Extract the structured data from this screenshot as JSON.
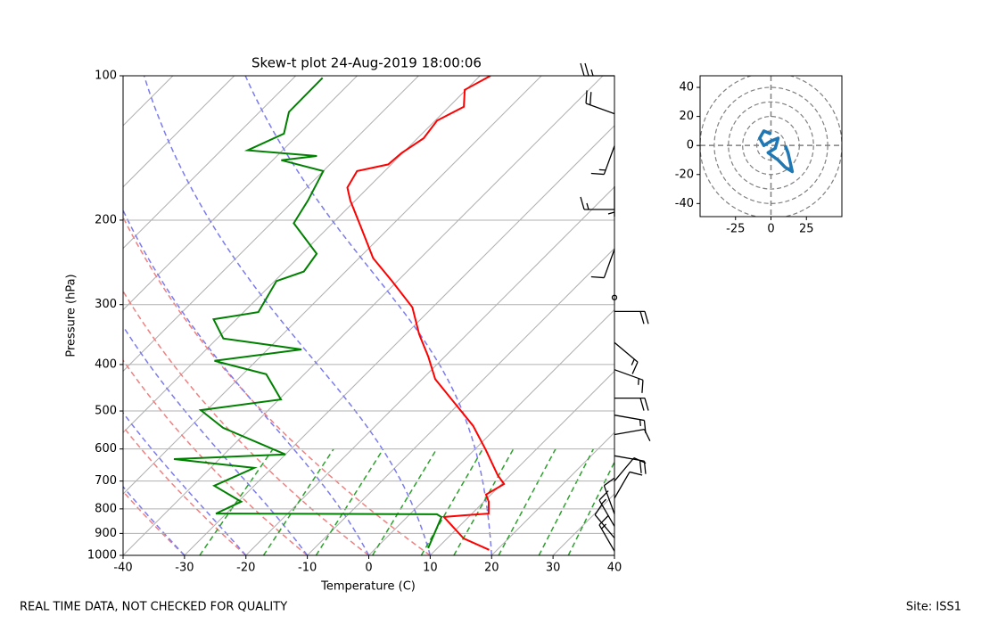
{
  "chart_data": [
    {
      "type": "skewt",
      "title": "Skew-t plot 24-Aug-2019 18:00:06",
      "x_label": "Temperature (C)",
      "y_label": "Pressure (hPa)",
      "xlim": [
        -40,
        40
      ],
      "xticks": [
        -40,
        -30,
        -20,
        -10,
        0,
        10,
        20,
        30,
        40
      ],
      "ylim": [
        1000,
        100
      ],
      "yticks": [
        1000,
        900,
        800,
        700,
        600,
        500,
        400,
        300,
        200,
        100
      ],
      "log_y": true,
      "grid": true,
      "series": [
        {
          "color": "#ff0000",
          "pressure": [
            974,
            922,
            832,
            825,
            818,
            773,
            747,
            710,
            680,
            603,
            537,
            487,
            429,
            385,
            346,
            304,
            268,
            240,
            207,
            182,
            171,
            158,
            153,
            145,
            135,
            124,
            116,
            107,
            100
          ],
          "values": [
            18.7,
            12.7,
            6.0,
            8.9,
            12.7,
            10.8,
            9.2,
            10.4,
            7.9,
            1.9,
            -4.1,
            -10.1,
            -17.9,
            -22.7,
            -27.8,
            -33.3,
            -40.9,
            -47.7,
            -54.7,
            -60.8,
            -63.4,
            -64.5,
            -60.5,
            -60.2,
            -59.0,
            -59.7,
            -57.6,
            -60.2,
            -58.3
          ]
        },
        {
          "color": "#008000",
          "pressure": [
            966,
            832,
            821,
            818,
            773,
            716,
            657,
            630,
            616,
            542,
            498,
            473,
            419,
            393,
            372,
            353,
            322,
            311,
            268,
            256,
            235,
            203,
            182,
            158,
            150,
            147,
            143,
            132,
            119,
            101
          ],
          "values": [
            8.5,
            5.6,
            4.4,
            -31.7,
            -29.5,
            -36.5,
            -32.9,
            -47.4,
            -30.0,
            -44.5,
            -51.0,
            -39.7,
            -46.2,
            -56.8,
            -44.5,
            -59.0,
            -63.7,
            -57.6,
            -59.7,
            -56.8,
            -57.6,
            -66.3,
            -67.7,
            -70.0,
            -78.6,
            -73.5,
            -85.7,
            -82.5,
            -85.2,
            -85.3
          ]
        }
      ],
      "barbs": {
        "pressure": [
          100,
          120,
          140,
          170,
          190,
          230,
          290,
          310,
          360,
          410,
          470,
          510,
          560,
          620,
          700,
          760,
          820,
          870,
          920,
          980
        ],
        "speed": [
          25,
          20,
          15,
          5,
          15,
          10,
          0,
          20,
          15,
          15,
          20,
          15,
          10,
          20,
          10,
          10,
          10,
          15,
          10,
          15
        ],
        "direction": [
          270,
          290,
          200,
          180,
          270,
          200,
          0,
          90,
          130,
          110,
          90,
          100,
          80,
          100,
          40,
          30,
          340,
          330,
          320,
          330
        ]
      }
    },
    {
      "type": "hodograph",
      "xlim": [
        -50,
        50
      ],
      "ylim": [
        -49,
        48
      ],
      "xticks": [
        -25,
        0,
        25
      ],
      "yticks": [
        -40,
        -20,
        0,
        20,
        40
      ],
      "color": "#1f77b4",
      "u": [
        0,
        -5,
        -8,
        -5,
        0,
        5,
        3,
        -2,
        5,
        10,
        15,
        12,
        10
      ],
      "v": [
        8,
        10,
        5,
        0,
        3,
        5,
        -2,
        -5,
        -10,
        -15,
        -18,
        -5,
        0
      ]
    }
  ],
  "footer_left": "REAL TIME DATA, NOT CHECKED FOR QUALITY",
  "footer_right": "Site: ISS1"
}
